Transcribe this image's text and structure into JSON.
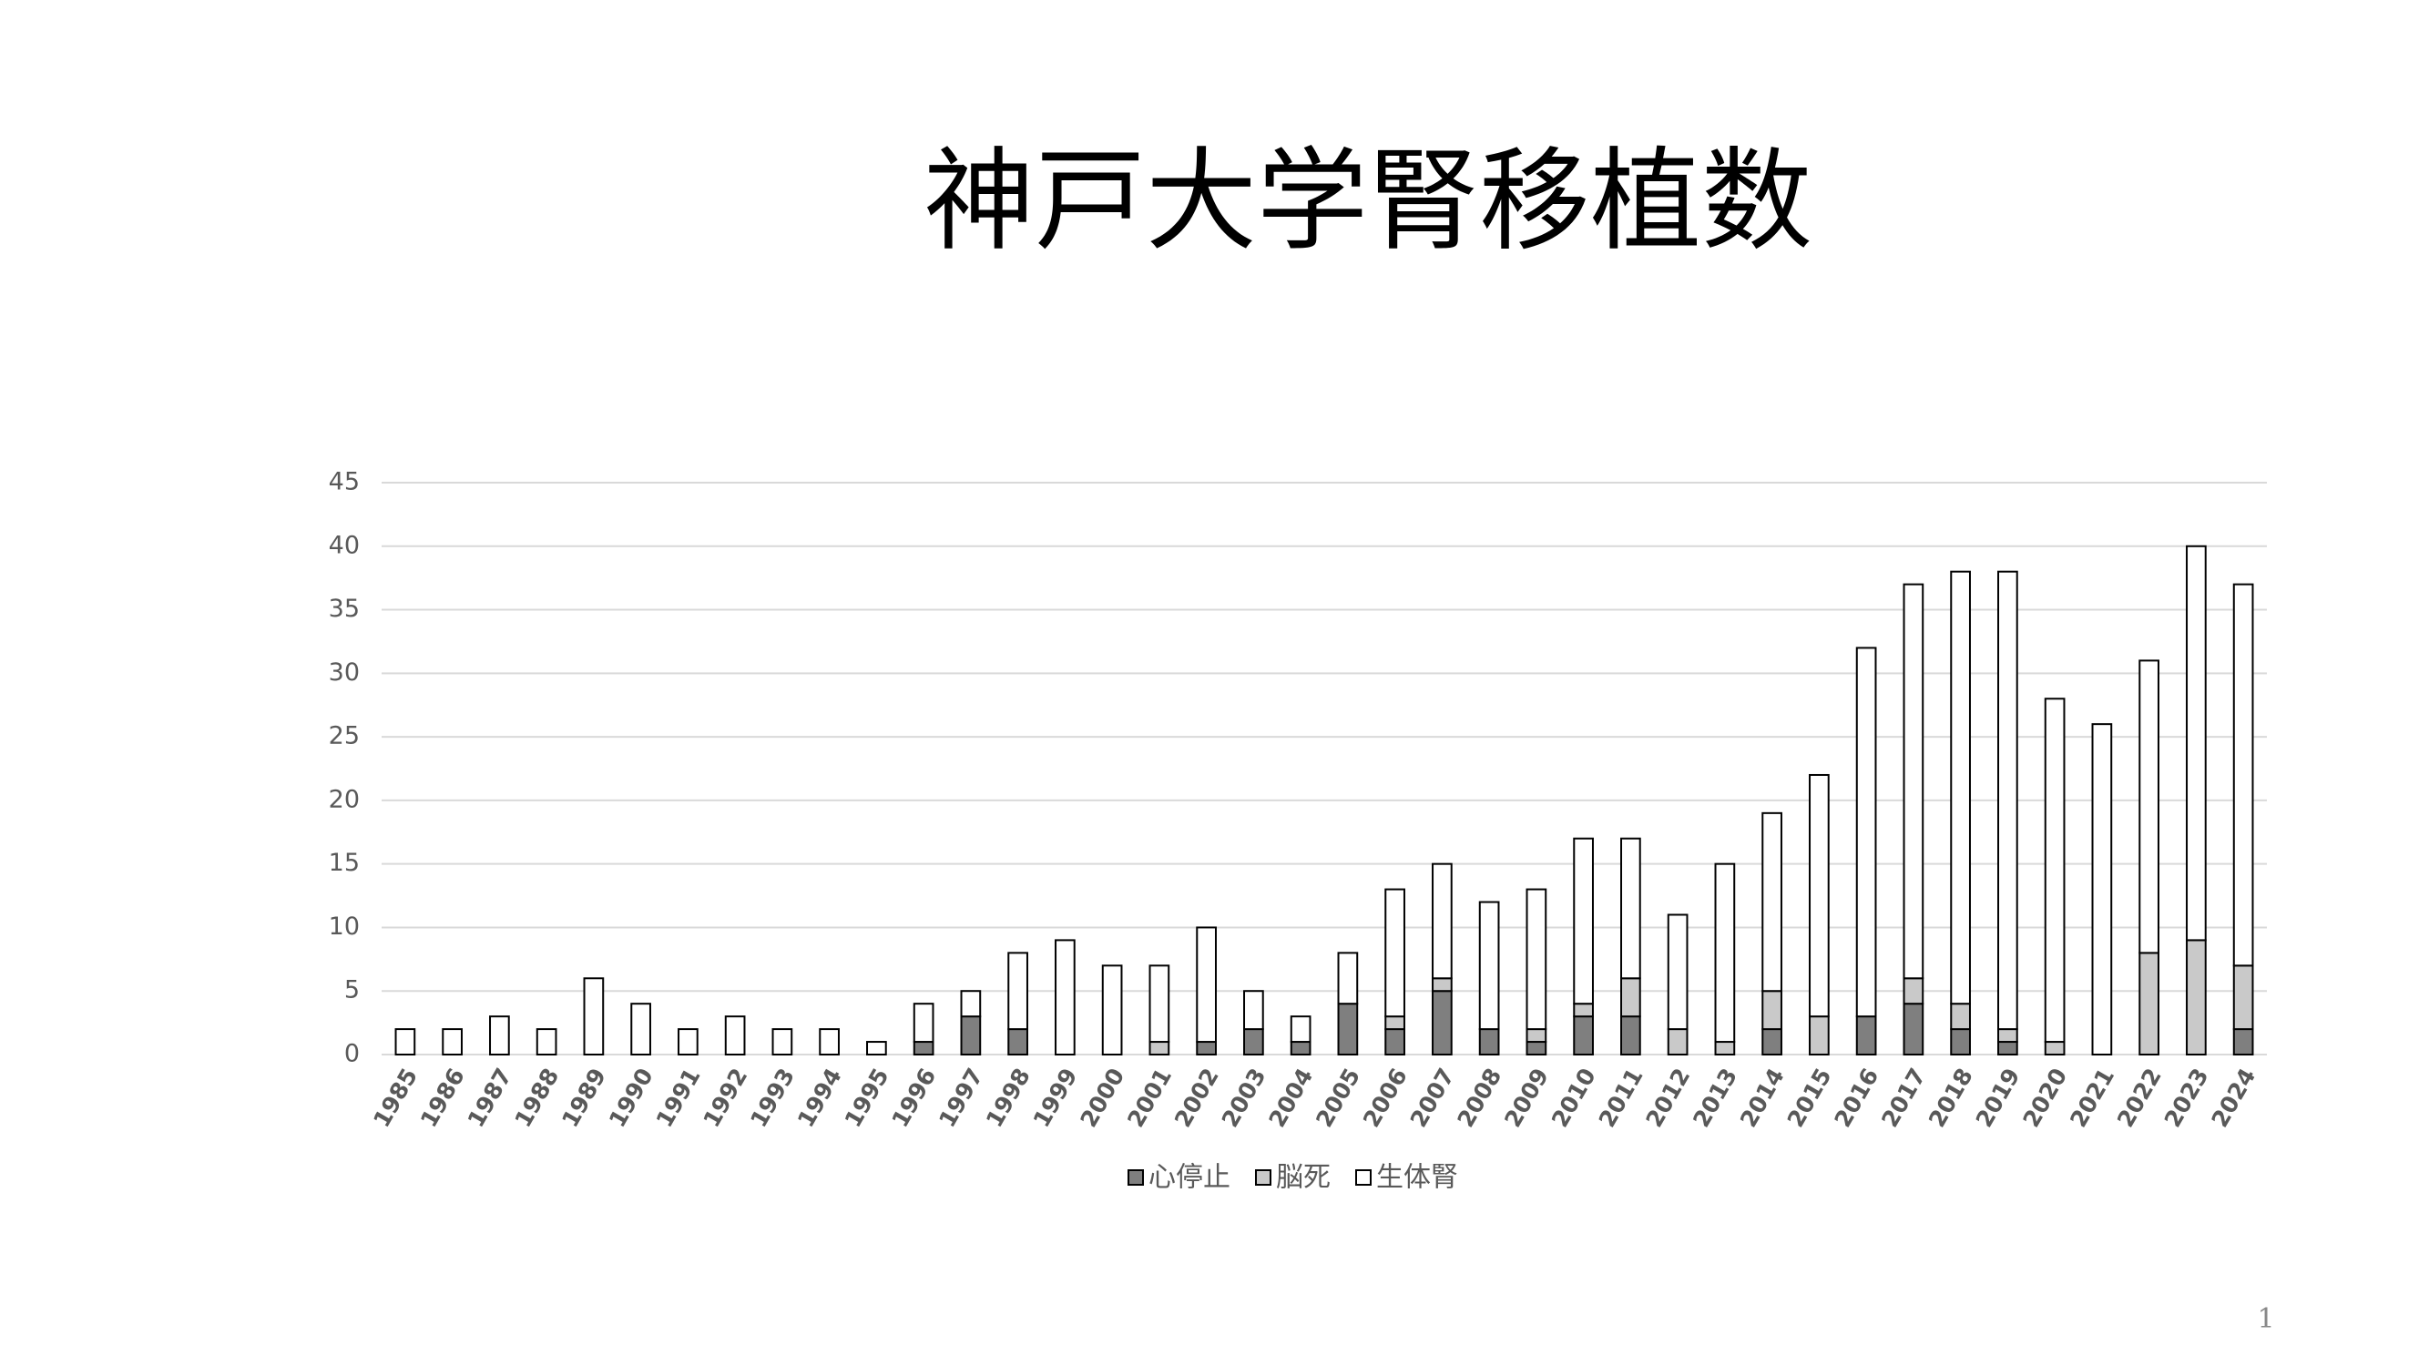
{
  "chart_data": {
    "type": "stacked_bar",
    "title": "神戸大学腎移植数",
    "categories": [
      "1985",
      "1986",
      "1987",
      "1988",
      "1989",
      "1990",
      "1991",
      "1992",
      "1993",
      "1994",
      "1995",
      "1996",
      "1997",
      "1998",
      "1999",
      "2000",
      "2001",
      "2002",
      "2003",
      "2004",
      "2005",
      "2006",
      "2007",
      "2008",
      "2009",
      "2010",
      "2011",
      "2012",
      "2013",
      "2014",
      "2015",
      "2016",
      "2017",
      "2018",
      "2019",
      "2020",
      "2021",
      "2022",
      "2023",
      "2024"
    ],
    "series": [
      {
        "name": "心停止",
        "color": "#7f7f7f",
        "values": [
          0,
          0,
          0,
          0,
          0,
          0,
          0,
          0,
          0,
          0,
          0,
          1,
          3,
          2,
          0,
          0,
          0,
          1,
          2,
          1,
          4,
          2,
          5,
          2,
          1,
          3,
          3,
          0,
          0,
          2,
          0,
          3,
          4,
          2,
          1,
          0,
          0,
          0,
          0,
          2
        ]
      },
      {
        "name": "脳死",
        "color": "#c9c9c9",
        "values": [
          0,
          0,
          0,
          0,
          0,
          0,
          0,
          0,
          0,
          0,
          0,
          0,
          0,
          0,
          0,
          0,
          1,
          0,
          0,
          0,
          0,
          1,
          1,
          0,
          1,
          1,
          3,
          2,
          1,
          3,
          3,
          0,
          2,
          2,
          1,
          1,
          0,
          8,
          9,
          5
        ]
      },
      {
        "name": "生体腎",
        "color": "#ffffff",
        "values": [
          2,
          2,
          3,
          2,
          6,
          4,
          2,
          3,
          2,
          2,
          1,
          3,
          2,
          6,
          9,
          7,
          6,
          9,
          3,
          2,
          4,
          10,
          9,
          10,
          11,
          13,
          11,
          9,
          14,
          14,
          19,
          29,
          31,
          34,
          36,
          27,
          26,
          23,
          31,
          30
        ]
      }
    ],
    "ylim": [
      0,
      45
    ],
    "yticks": [
      0,
      5,
      10,
      15,
      20,
      25,
      30,
      35,
      40,
      45
    ],
    "grid": true,
    "legend": "bottom"
  },
  "page_number": "1"
}
